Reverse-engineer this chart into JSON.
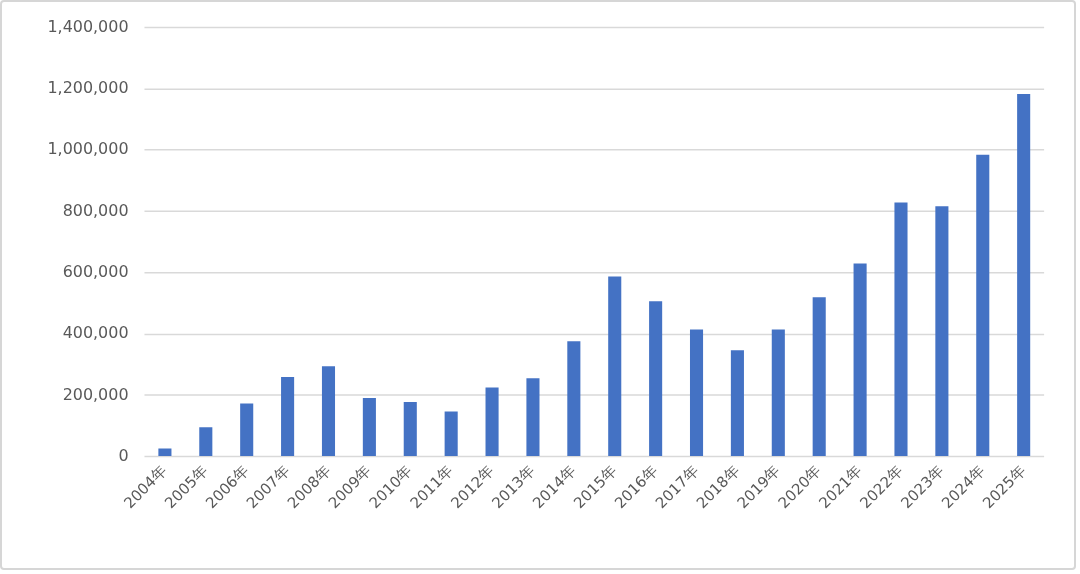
{
  "chart_data": {
    "type": "bar",
    "categories": [
      "2004年",
      "2005年",
      "2006年",
      "2007年",
      "2008年",
      "2009年",
      "2010年",
      "2011年",
      "2012年",
      "2013年",
      "2014年",
      "2015年",
      "2016年",
      "2017年",
      "2018年",
      "2019年",
      "2020年",
      "2021年",
      "2022年",
      "2023年",
      "2024年",
      "2025年"
    ],
    "values": [
      27000,
      96000,
      174000,
      260000,
      295000,
      192000,
      179000,
      148000,
      226000,
      256000,
      377000,
      588000,
      507000,
      415000,
      347000,
      415000,
      520000,
      630000,
      829000,
      817000,
      985000,
      1183000
    ],
    "color": "#4472c4",
    "ylim": [
      0,
      1400000
    ],
    "yticks": [
      {
        "value": 0,
        "label": "0"
      },
      {
        "value": 200000,
        "label": "200,000"
      },
      {
        "value": 400000,
        "label": "400,000"
      },
      {
        "value": 600000,
        "label": "600,000"
      },
      {
        "value": 800000,
        "label": "800,000"
      },
      {
        "value": 1000000,
        "label": "1,000,000"
      },
      {
        "value": 1200000,
        "label": "1,200,000"
      },
      {
        "value": 1400000,
        "label": "1,400,000"
      }
    ],
    "grid": "y"
  }
}
